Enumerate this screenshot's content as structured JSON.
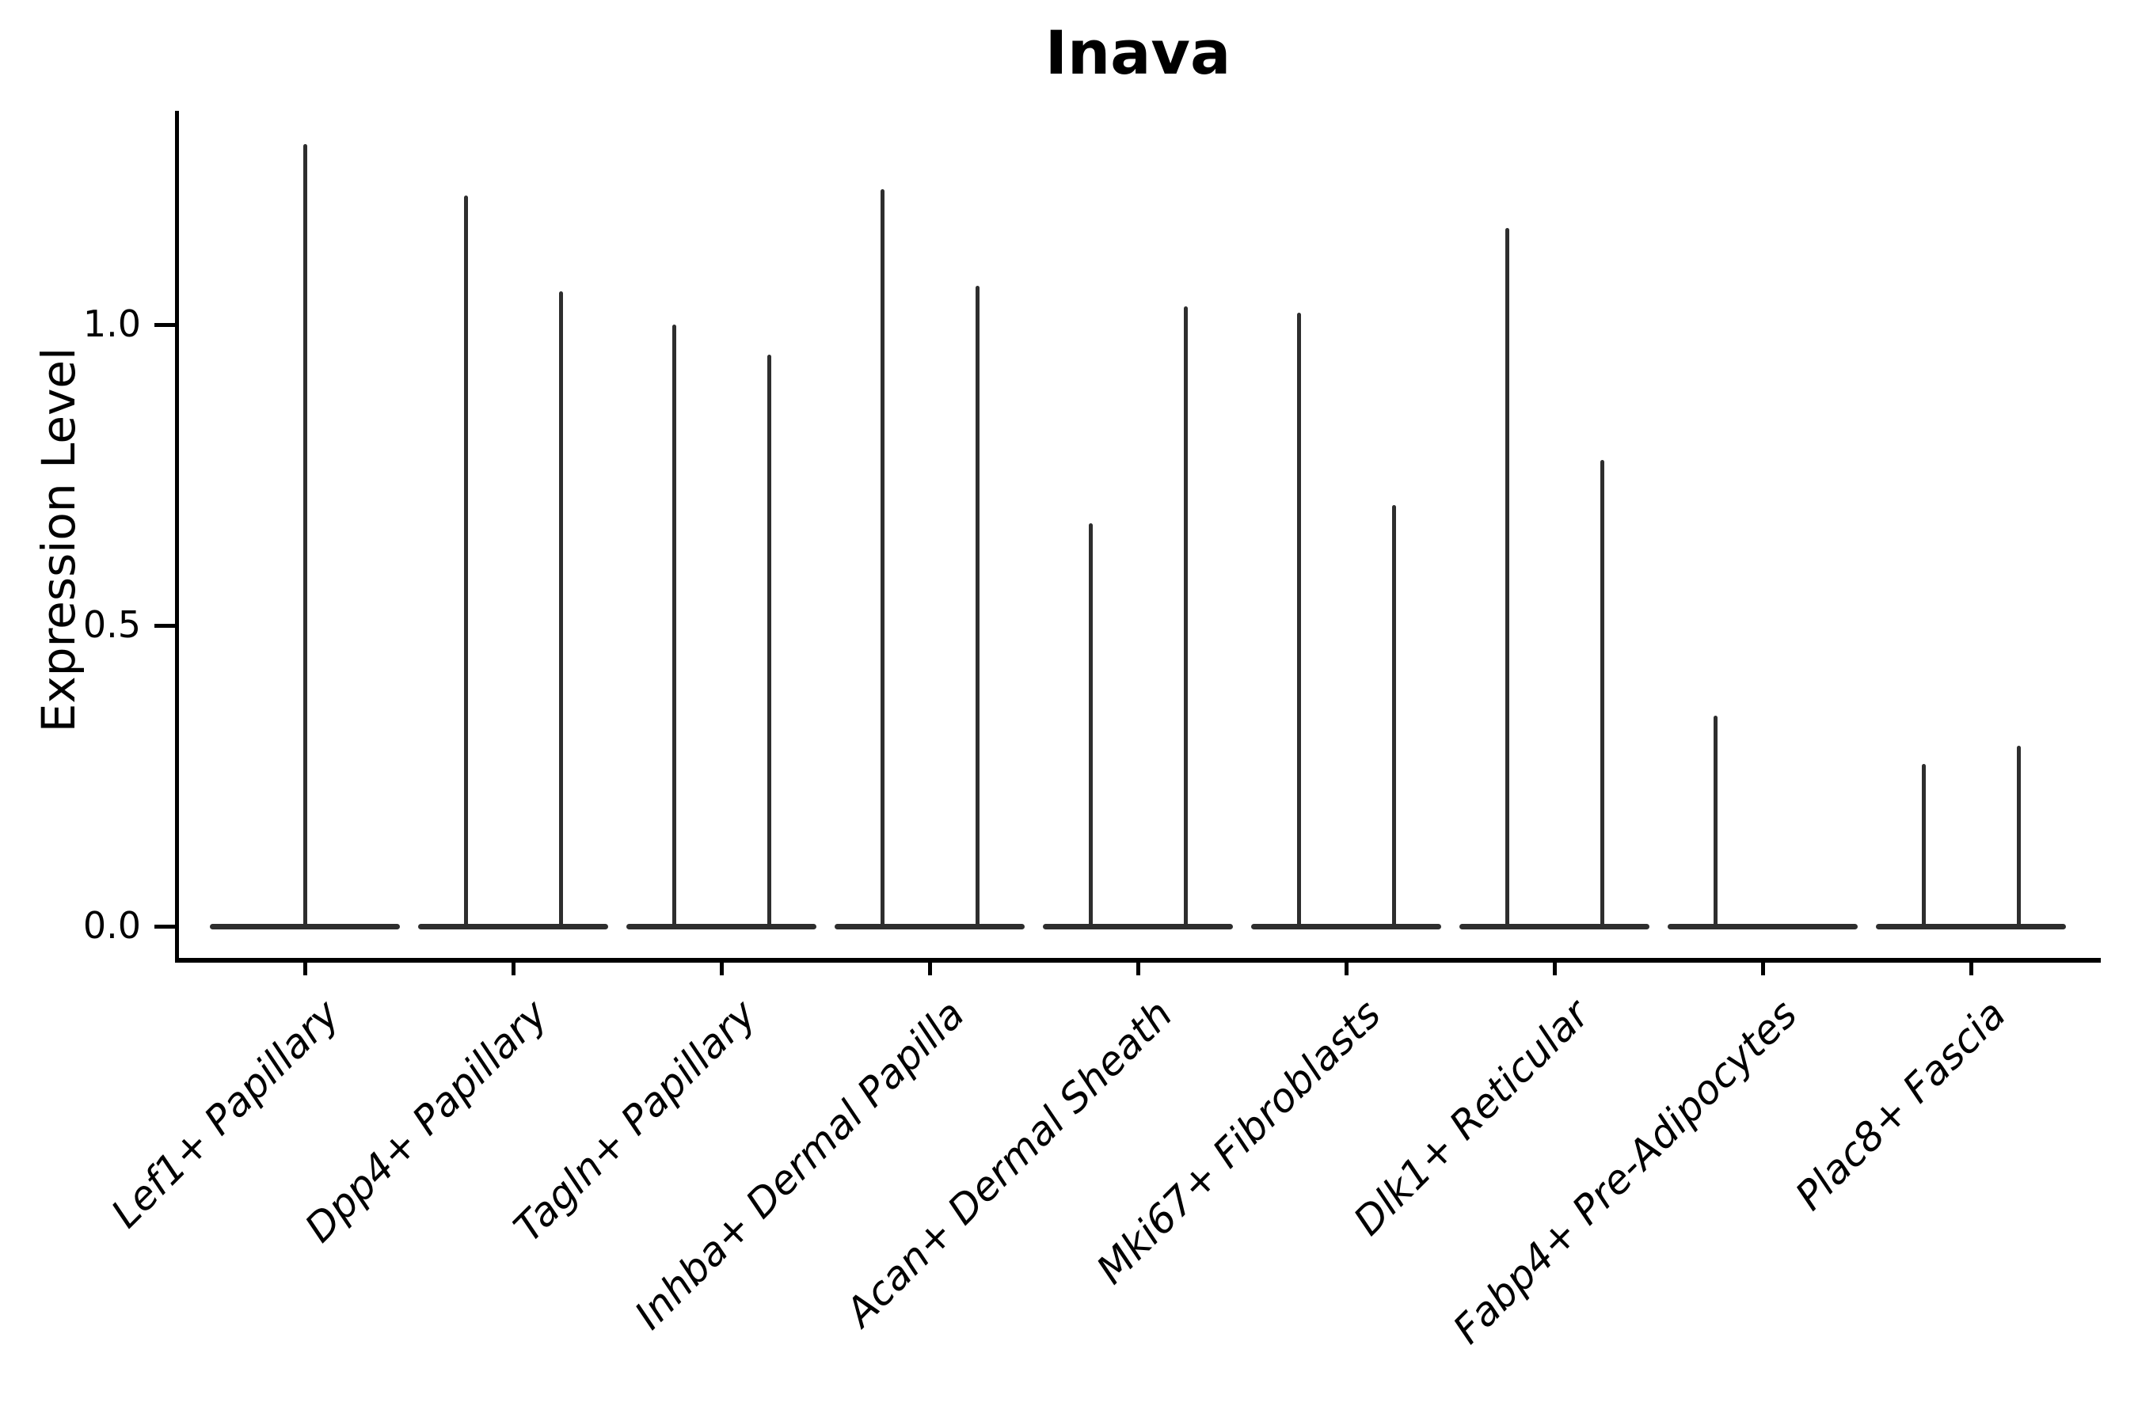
{
  "title": "Inava",
  "axes": {
    "ylabel": "Expression Level",
    "yticks": [
      {
        "label": "1.0",
        "value": 1.0
      },
      {
        "label": "0.5",
        "value": 0.5
      },
      {
        "label": "0.0",
        "value": 0.0
      }
    ]
  },
  "colors": {
    "ink": "#2e2e2e",
    "axis": "#000000",
    "background": "#ffffff"
  },
  "chart_data": {
    "type": "violin",
    "title": "Inava",
    "xlabel": "",
    "ylabel": "Expression Level",
    "ylim": [
      -0.06,
      1.36
    ],
    "ytick_values": [
      0.0,
      0.5,
      1.0
    ],
    "grid": false,
    "legend": "none",
    "description": "Single-cell expression violin plot; each category shows collapsed violin bodies at 0 with thin density spikes up to the maximum expression value. Most categories contain two dodged violins (left/right); Lef1+ Papillary has one centered violin and Fabp4+ Pre-Adipocytes only a left violin.",
    "categories": [
      "Lef1+ Papillary",
      "Dpp4+ Papillary",
      "Tagln+ Papillary",
      "Inhba+ Dermal Papilla",
      "Acan+ Dermal Sheath",
      "Mki67+ Fibroblasts",
      "Dlk1+ Reticular",
      "Fabp4+ Pre-Adipocytes",
      "Plac8+ Fascia"
    ],
    "violins": [
      {
        "category": "Lef1+ Papillary",
        "spikes": [
          {
            "position": "center",
            "max": 1.3
          }
        ]
      },
      {
        "category": "Dpp4+ Papillary",
        "spikes": [
          {
            "position": "left",
            "max": 1.215
          },
          {
            "position": "right",
            "max": 1.055
          }
        ]
      },
      {
        "category": "Tagln+ Papillary",
        "spikes": [
          {
            "position": "left",
            "max": 1.0
          },
          {
            "position": "right",
            "max": 0.95
          }
        ]
      },
      {
        "category": "Inhba+ Dermal Papilla",
        "spikes": [
          {
            "position": "left",
            "max": 1.225
          },
          {
            "position": "right",
            "max": 1.065
          }
        ]
      },
      {
        "category": "Acan+ Dermal Sheath",
        "spikes": [
          {
            "position": "left",
            "max": 0.67
          },
          {
            "position": "right",
            "max": 1.03
          }
        ]
      },
      {
        "category": "Mki67+ Fibroblasts",
        "spikes": [
          {
            "position": "left",
            "max": 1.02
          },
          {
            "position": "right",
            "max": 0.7
          }
        ]
      },
      {
        "category": "Dlk1+ Reticular",
        "spikes": [
          {
            "position": "left",
            "max": 1.16
          },
          {
            "position": "right",
            "max": 0.775
          }
        ]
      },
      {
        "category": "Fabp4+ Pre-Adipocytes",
        "spikes": [
          {
            "position": "left",
            "max": 0.35
          }
        ]
      },
      {
        "category": "Plac8+ Fascia",
        "spikes": [
          {
            "position": "left",
            "max": 0.27
          },
          {
            "position": "right",
            "max": 0.3
          }
        ]
      }
    ]
  }
}
